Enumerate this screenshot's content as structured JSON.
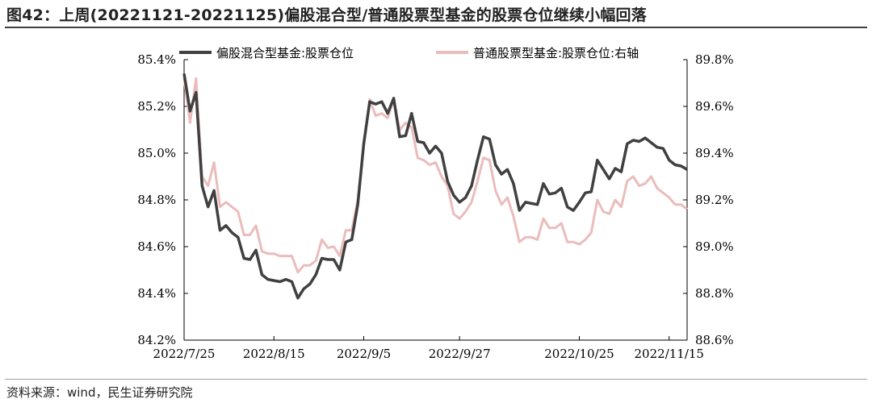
{
  "header": {
    "title": "图42：上周(20221121-20221125)偏股混合型/普通股票型基金的股票仓位继续小幅回落"
  },
  "footer": {
    "source": "资料来源：wind，民生证券研究院"
  },
  "colors": {
    "series1": "#404040",
    "series2": "#ebbcbc",
    "axis": "#000000"
  },
  "chart_data": {
    "type": "line",
    "title": "",
    "legend_position": "top",
    "grid": false,
    "x_ticks": [
      "2022/7/25",
      "2022/8/15",
      "2022/9/5",
      "2022/9/27",
      "2022/10/25",
      "2022/11/15"
    ],
    "y_left": {
      "ticks": [
        "84.2%",
        "84.4%",
        "84.6%",
        "84.8%",
        "85.0%",
        "85.2%",
        "85.4%"
      ],
      "range": [
        84.2,
        85.4
      ]
    },
    "y_right": {
      "ticks": [
        "88.6%",
        "88.8%",
        "89.0%",
        "89.2%",
        "89.4%",
        "89.6%",
        "89.8%"
      ],
      "range": [
        88.6,
        89.8
      ]
    },
    "series": [
      {
        "name": "偏股混合型基金:股票仓位",
        "axis": "left",
        "values": [
          85.34,
          85.18,
          85.26,
          84.86,
          84.77,
          84.84,
          84.67,
          84.69,
          84.66,
          84.64,
          84.55,
          84.545,
          84.585,
          84.48,
          84.46,
          84.455,
          84.45,
          84.46,
          84.45,
          84.38,
          84.42,
          84.44,
          84.48,
          84.55,
          84.545,
          84.545,
          84.5,
          84.62,
          84.63,
          84.78,
          85.04,
          85.22,
          85.21,
          85.22,
          85.17,
          85.235,
          85.07,
          85.075,
          85.17,
          85.05,
          85.045,
          85.0,
          85.03,
          85.0,
          84.88,
          84.82,
          84.79,
          84.81,
          84.86,
          84.97,
          85.07,
          85.06,
          84.95,
          84.91,
          84.93,
          84.87,
          84.755,
          84.79,
          84.785,
          84.78,
          84.87,
          84.825,
          84.83,
          84.85,
          84.77,
          84.755,
          84.79,
          84.83,
          84.835,
          84.97,
          84.93,
          84.89,
          84.935,
          84.92,
          85.04,
          85.055,
          85.05,
          85.065,
          85.045,
          85.025,
          85.02,
          84.97,
          84.95,
          84.945,
          84.93
        ]
      },
      {
        "name": "普通股票型基金:股票仓位:右轴",
        "axis": "right",
        "values": [
          89.72,
          89.53,
          89.72,
          89.3,
          89.26,
          89.36,
          89.17,
          89.19,
          89.17,
          89.15,
          89.05,
          89.05,
          89.09,
          88.98,
          88.97,
          88.97,
          88.96,
          88.96,
          88.96,
          88.89,
          88.92,
          88.92,
          88.94,
          89.03,
          88.995,
          89.0,
          88.96,
          89.07,
          89.07,
          89.2,
          89.43,
          89.63,
          89.56,
          89.57,
          89.55,
          89.63,
          89.5,
          89.53,
          89.51,
          89.38,
          89.37,
          89.35,
          89.36,
          89.3,
          89.26,
          89.14,
          89.12,
          89.15,
          89.19,
          89.28,
          89.38,
          89.37,
          89.24,
          89.18,
          89.21,
          89.13,
          89.02,
          89.04,
          89.04,
          89.03,
          89.12,
          89.08,
          89.08,
          89.1,
          89.02,
          89.02,
          89.01,
          89.03,
          89.06,
          89.2,
          89.15,
          89.14,
          89.2,
          89.17,
          89.28,
          89.3,
          89.26,
          89.27,
          89.3,
          89.25,
          89.23,
          89.21,
          89.18,
          89.18,
          89.16
        ]
      }
    ]
  }
}
